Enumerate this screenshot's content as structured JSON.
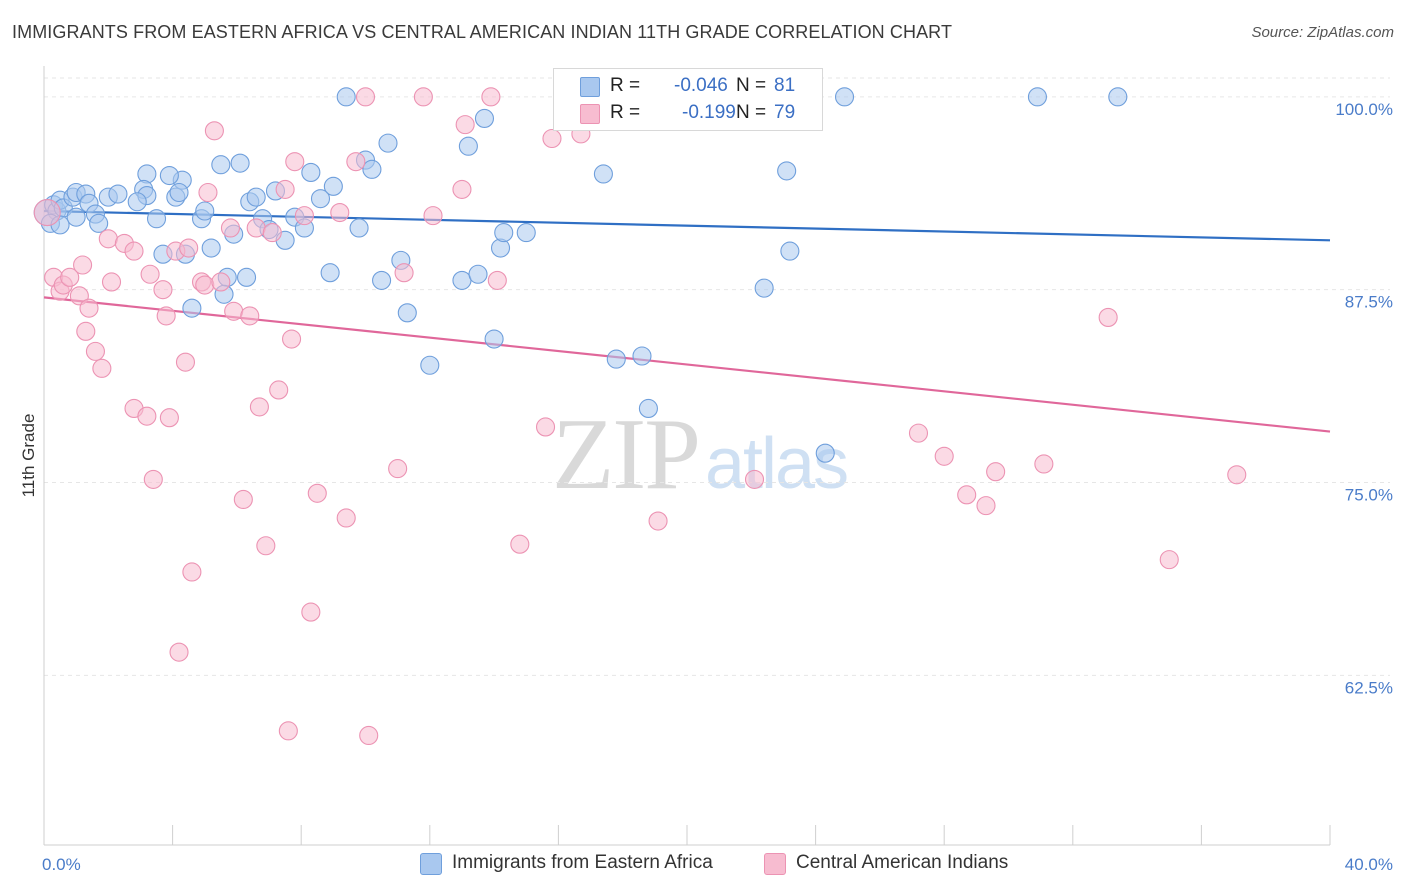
{
  "title": "IMMIGRANTS FROM EASTERN AFRICA VS CENTRAL AMERICAN INDIAN 11TH GRADE CORRELATION CHART",
  "source": "Source: ZipAtlas.com",
  "watermark": {
    "zip": "ZIP",
    "atlas": "atlas"
  },
  "legend": {
    "series1": {
      "r_label": "R =",
      "r_value": "-0.046",
      "n_label": "N =",
      "n_value": "81"
    },
    "series2": {
      "r_label": "R =",
      "r_value": "-0.199",
      "n_label": "N =",
      "n_value": "79"
    }
  },
  "bottom_legend": {
    "series1": "Immigrants from Eastern Africa",
    "series2": "Central American Indians"
  },
  "colors": {
    "blue_fill": "#a9c8ef",
    "blue_stroke": "#6f9fdc",
    "blue_line": "#2f6fc4",
    "pink_fill": "#f7bcd0",
    "pink_stroke": "#ec93b3",
    "pink_line": "#e0679a",
    "grid": "#e6e6e6",
    "tick_text": "#4a7cc9"
  },
  "chart_data": {
    "type": "scatter",
    "title": "IMMIGRANTS FROM EASTERN AFRICA VS CENTRAL AMERICAN INDIAN 11TH GRADE CORRELATION CHART",
    "xlabel": "",
    "ylabel": "11th Grade",
    "xlim": [
      0,
      40
    ],
    "ylim": [
      51.5,
      102
    ],
    "x_tick_labels": [
      "0.0%",
      "40.0%"
    ],
    "y_ticks": [
      {
        "value": 100,
        "label": "100.0%"
      },
      {
        "value": 87.5,
        "label": "87.5%"
      },
      {
        "value": 75,
        "label": "75.0%"
      },
      {
        "value": 62.5,
        "label": "62.5%"
      }
    ],
    "grid_y": [
      100,
      87.5,
      75,
      62.5
    ],
    "series": [
      {
        "name": "Immigrants from Eastern Africa",
        "color": "blue",
        "trend": [
          [
            0,
            92.6
          ],
          [
            40,
            90.7
          ]
        ],
        "points": [
          [
            0.1,
            92.5
          ],
          [
            0.3,
            93.0
          ],
          [
            0.4,
            92.6
          ],
          [
            0.5,
            93.3
          ],
          [
            0.6,
            92.8
          ],
          [
            0.9,
            93.5
          ],
          [
            1.0,
            93.8
          ],
          [
            1.3,
            93.7
          ],
          [
            1.0,
            92.2
          ],
          [
            1.4,
            93.1
          ],
          [
            1.6,
            92.4
          ],
          [
            2.0,
            93.5
          ],
          [
            2.3,
            93.7
          ],
          [
            3.2,
            95.0
          ],
          [
            3.1,
            94.0
          ],
          [
            3.2,
            93.6
          ],
          [
            2.9,
            93.2
          ],
          [
            3.5,
            92.1
          ],
          [
            3.7,
            89.8
          ],
          [
            4.1,
            93.5
          ],
          [
            4.3,
            94.6
          ],
          [
            3.9,
            94.9
          ],
          [
            4.2,
            93.8
          ],
          [
            4.4,
            89.8
          ],
          [
            4.6,
            86.3
          ],
          [
            4.9,
            92.1
          ],
          [
            5.0,
            92.6
          ],
          [
            5.2,
            90.2
          ],
          [
            5.5,
            95.6
          ],
          [
            5.7,
            88.3
          ],
          [
            5.6,
            87.2
          ],
          [
            5.9,
            91.1
          ],
          [
            6.1,
            95.7
          ],
          [
            6.3,
            88.3
          ],
          [
            6.4,
            93.2
          ],
          [
            6.6,
            93.5
          ],
          [
            6.8,
            92.1
          ],
          [
            7.0,
            91.4
          ],
          [
            7.2,
            93.9
          ],
          [
            7.5,
            90.7
          ],
          [
            7.8,
            92.2
          ],
          [
            8.1,
            91.5
          ],
          [
            8.3,
            95.1
          ],
          [
            8.6,
            93.4
          ],
          [
            8.9,
            88.6
          ],
          [
            9.0,
            94.2
          ],
          [
            9.4,
            100.0
          ],
          [
            9.8,
            91.5
          ],
          [
            10.0,
            95.9
          ],
          [
            10.2,
            95.3
          ],
          [
            10.5,
            88.1
          ],
          [
            10.7,
            97.0
          ],
          [
            11.1,
            89.4
          ],
          [
            11.3,
            86.0
          ],
          [
            12.0,
            82.6
          ],
          [
            13.0,
            88.1
          ],
          [
            13.2,
            96.8
          ],
          [
            13.5,
            88.5
          ],
          [
            13.7,
            98.6
          ],
          [
            14.0,
            84.3
          ],
          [
            14.2,
            90.2
          ],
          [
            14.3,
            91.2
          ],
          [
            15.0,
            91.2
          ],
          [
            16.9,
            98.5
          ],
          [
            17.4,
            95.0
          ],
          [
            17.5,
            100.0
          ],
          [
            17.8,
            83.0
          ],
          [
            18.0,
            100.0
          ],
          [
            18.6,
            83.2
          ],
          [
            18.8,
            79.8
          ],
          [
            20.2,
            100.0
          ],
          [
            22.4,
            87.6
          ],
          [
            23.1,
            95.2
          ],
          [
            23.2,
            90.0
          ],
          [
            24.3,
            76.9
          ],
          [
            24.9,
            100.0
          ],
          [
            30.9,
            100.0
          ],
          [
            33.4,
            100.0
          ],
          [
            0.2,
            91.8
          ],
          [
            0.5,
            91.7
          ],
          [
            1.7,
            91.8
          ]
        ]
      },
      {
        "name": "Central American Indians",
        "color": "pink",
        "trend": [
          [
            0,
            87.0
          ],
          [
            40,
            78.3
          ]
        ],
        "points": [
          [
            0.1,
            92.5
          ],
          [
            0.3,
            88.3
          ],
          [
            0.5,
            87.4
          ],
          [
            0.6,
            87.8
          ],
          [
            0.8,
            88.3
          ],
          [
            1.1,
            87.1
          ],
          [
            1.2,
            89.1
          ],
          [
            1.4,
            86.3
          ],
          [
            1.3,
            84.8
          ],
          [
            1.6,
            83.5
          ],
          [
            1.8,
            82.4
          ],
          [
            2.0,
            90.8
          ],
          [
            2.1,
            88.0
          ],
          [
            2.5,
            90.5
          ],
          [
            2.8,
            90.0
          ],
          [
            2.8,
            79.8
          ],
          [
            3.2,
            79.3
          ],
          [
            3.3,
            88.5
          ],
          [
            3.4,
            75.2
          ],
          [
            3.7,
            87.5
          ],
          [
            3.8,
            85.8
          ],
          [
            3.9,
            79.2
          ],
          [
            4.1,
            90.0
          ],
          [
            4.2,
            64.0
          ],
          [
            4.4,
            82.8
          ],
          [
            4.5,
            90.2
          ],
          [
            4.6,
            69.2
          ],
          [
            4.9,
            88.0
          ],
          [
            5.0,
            87.8
          ],
          [
            5.1,
            93.8
          ],
          [
            5.3,
            97.8
          ],
          [
            5.5,
            88.0
          ],
          [
            5.8,
            91.5
          ],
          [
            5.9,
            86.1
          ],
          [
            6.2,
            73.9
          ],
          [
            6.4,
            85.8
          ],
          [
            6.6,
            91.5
          ],
          [
            6.7,
            79.9
          ],
          [
            6.9,
            70.9
          ],
          [
            7.1,
            91.2
          ],
          [
            7.3,
            81.0
          ],
          [
            7.5,
            94.0
          ],
          [
            7.6,
            58.9
          ],
          [
            7.7,
            84.3
          ],
          [
            7.8,
            95.8
          ],
          [
            8.1,
            92.3
          ],
          [
            8.3,
            66.6
          ],
          [
            8.5,
            74.3
          ],
          [
            9.2,
            92.5
          ],
          [
            9.4,
            72.7
          ],
          [
            9.7,
            95.8
          ],
          [
            10.0,
            100.0
          ],
          [
            10.1,
            58.6
          ],
          [
            11.0,
            75.9
          ],
          [
            11.2,
            88.6
          ],
          [
            11.8,
            100.0
          ],
          [
            12.1,
            92.3
          ],
          [
            13.0,
            94.0
          ],
          [
            13.1,
            98.2
          ],
          [
            13.9,
            100.0
          ],
          [
            14.1,
            88.1
          ],
          [
            14.8,
            71.0
          ],
          [
            15.6,
            78.6
          ],
          [
            15.8,
            97.3
          ],
          [
            16.7,
            97.6
          ],
          [
            16.8,
            100.0
          ],
          [
            19.1,
            100.0
          ],
          [
            19.1,
            72.5
          ],
          [
            22.0,
            100.0
          ],
          [
            22.1,
            75.2
          ],
          [
            27.2,
            78.2
          ],
          [
            28.0,
            76.7
          ],
          [
            28.7,
            74.2
          ],
          [
            29.3,
            73.5
          ],
          [
            29.6,
            75.7
          ],
          [
            31.1,
            76.2
          ],
          [
            33.1,
            85.7
          ],
          [
            35.0,
            70.0
          ],
          [
            37.1,
            75.5
          ]
        ]
      }
    ]
  }
}
